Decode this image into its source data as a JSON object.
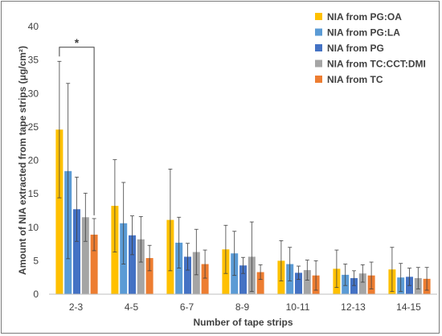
{
  "chart_data": {
    "type": "bar",
    "xlabel": "Number of tape strips",
    "ylabel": "Amount of NIA extracted from tape strips (μg/cm²)",
    "ylim": [
      0,
      40
    ],
    "yticks": [
      0,
      5,
      10,
      15,
      20,
      25,
      30,
      35,
      40
    ],
    "grid": false,
    "legend_position": "top-right",
    "categories": [
      "2-3",
      "4-5",
      "6-7",
      "8-9",
      "10-11",
      "12-13",
      "14-15"
    ],
    "series": [
      {
        "name": "NIA from PG:OA",
        "color": "#FFC000",
        "values": [
          24.6,
          13.2,
          11.1,
          6.7,
          5.0,
          3.8,
          3.7
        ],
        "error": [
          10.2,
          6.9,
          7.6,
          3.6,
          3.0,
          2.8,
          3.3
        ]
      },
      {
        "name": "NIA from PG:LA",
        "color": "#5B9BD5",
        "values": [
          18.4,
          10.6,
          7.7,
          6.1,
          4.5,
          2.9,
          2.5
        ],
        "error": [
          13.1,
          6.1,
          3.8,
          3.3,
          2.5,
          1.6,
          2.1
        ]
      },
      {
        "name": "NIA from PG",
        "color": "#4472C4",
        "values": [
          12.7,
          8.8,
          5.6,
          4.3,
          3.2,
          2.4,
          2.6
        ],
        "error": [
          4.8,
          2.9,
          2.0,
          1.2,
          1.0,
          1.1,
          1.3
        ]
      },
      {
        "name": "NIA from TC:CCT:DMI",
        "color": "#A5A5A5",
        "values": [
          11.5,
          8.2,
          6.3,
          5.6,
          3.6,
          3.1,
          2.4
        ],
        "error": [
          3.6,
          3.4,
          3.4,
          5.2,
          1.5,
          1.3,
          1.6
        ]
      },
      {
        "name": "NIA from TC",
        "color": "#ED7D31",
        "values": [
          8.9,
          5.4,
          4.5,
          3.3,
          2.8,
          2.8,
          2.3
        ],
        "error": [
          2.4,
          1.9,
          2.1,
          1.1,
          2.2,
          2.0,
          1.7
        ]
      }
    ],
    "annotation": {
      "text": "*"
    }
  }
}
